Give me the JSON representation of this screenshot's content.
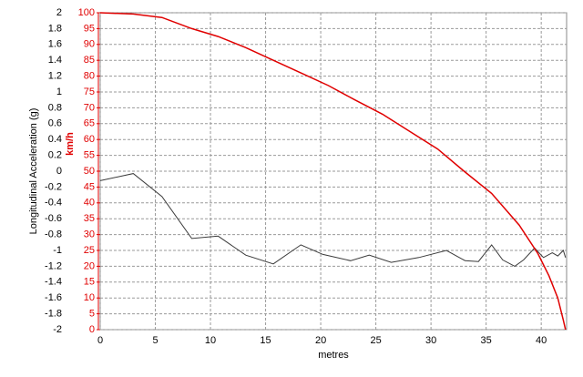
{
  "chart_data": {
    "type": "line",
    "xlabel": "metres",
    "ylabel": "Longitudinal Acceleration (g)",
    "y2label": "km/h",
    "xlim": [
      0,
      42.3
    ],
    "xticks": [
      0,
      5,
      10,
      15,
      20,
      25,
      30,
      35,
      40
    ],
    "ylim": [
      -2,
      2
    ],
    "yticks": [
      2,
      1.8,
      1.6,
      1.4,
      1.2,
      1,
      0.8,
      0.6,
      0.4,
      0.2,
      0,
      -0.2,
      -0.4,
      -0.6,
      -0.8,
      -1,
      -1.2,
      -1.4,
      -1.6,
      -1.8,
      -2
    ],
    "y2lim": [
      0,
      100
    ],
    "y2ticks": [
      100,
      95,
      90,
      85,
      80,
      75,
      70,
      65,
      60,
      55,
      50,
      45,
      40,
      35,
      30,
      25,
      20,
      15,
      10,
      5,
      0
    ],
    "y2color": "#e00000",
    "grid": true,
    "series": [
      {
        "color": "#3a3a3a",
        "x": [
          0,
          3.0,
          5.6,
          8.3,
          10.7,
          13.2,
          15.7,
          18.2,
          20.2,
          22.7,
          24.4,
          26.4,
          28.9,
          31.4,
          33.1,
          34.3,
          35.5,
          36.5,
          37.6,
          38.4,
          39.4,
          40.2,
          41.0,
          41.5,
          42.0,
          42.2
        ],
        "values": [
          -0.12,
          -0.03,
          -0.32,
          -0.85,
          -0.82,
          -1.06,
          -1.17,
          -0.93,
          -1.05,
          -1.13,
          -1.06,
          -1.15,
          -1.09,
          -1.0,
          -1.13,
          -1.14,
          -0.93,
          -1.12,
          -1.2,
          -1.12,
          -0.97,
          -1.09,
          -1.03,
          -1.07,
          -1.0,
          -1.09
        ]
      },
      {
        "color": "#e00000",
        "axis": "y2",
        "x": [
          0,
          3.0,
          5.6,
          8.3,
          10.7,
          13.2,
          15.7,
          18.2,
          20.7,
          23.1,
          25.6,
          28.1,
          30.6,
          33.0,
          35.5,
          38.0,
          39.7,
          40.7,
          41.5,
          42.0,
          42.2
        ],
        "values": [
          100,
          99.6,
          98.5,
          95,
          92.5,
          89,
          85,
          81,
          77,
          72.5,
          68,
          62.5,
          57,
          50,
          43,
          33,
          24,
          17,
          10,
          3,
          0
        ]
      }
    ]
  }
}
